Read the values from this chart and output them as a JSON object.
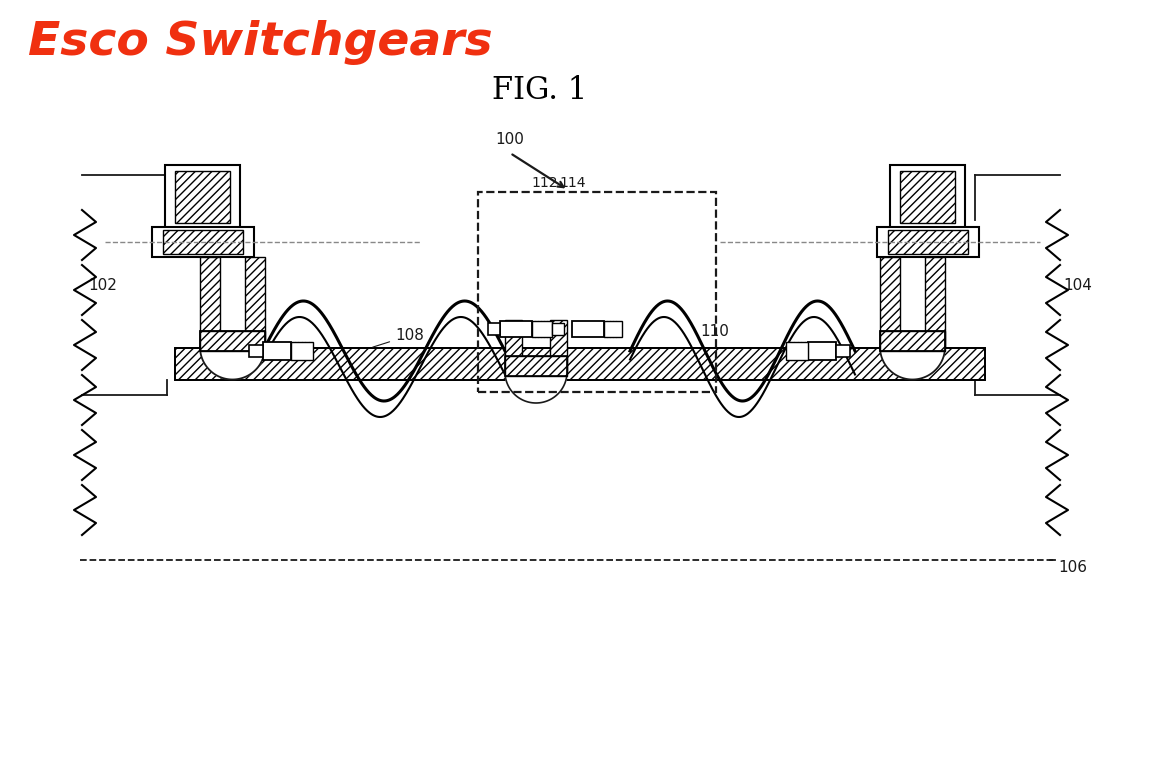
{
  "title": "FIG. 1",
  "header": "Esco Switchgears",
  "header_color": "#f03010",
  "bg_color": "#ffffff",
  "line_color": "#1a1a1a",
  "gray_dash": "#888888"
}
